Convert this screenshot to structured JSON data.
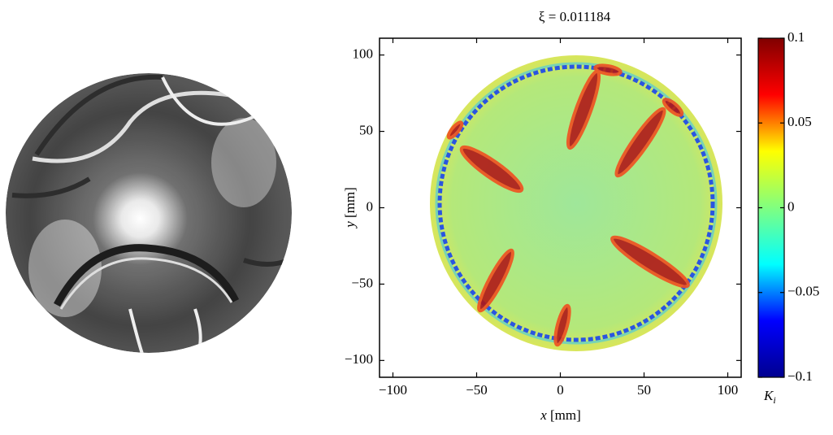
{
  "chart_data": {
    "type": "heatmap",
    "title": "ξ = 0.011184",
    "xlabel": {
      "symbol": "x",
      "unit": "[mm]"
    },
    "ylabel": {
      "symbol": "y",
      "unit": "[mm]"
    },
    "xlim": [
      -108,
      108
    ],
    "ylim": [
      -111,
      111
    ],
    "xticks": [
      {
        "value": -100,
        "label": "−100"
      },
      {
        "value": -50,
        "label": "−50"
      },
      0,
      50,
      100
    ],
    "yticks": [
      {
        "value": -100,
        "label": "−100"
      },
      {
        "value": -50,
        "label": "−50"
      },
      0,
      50,
      100
    ],
    "colormap": "jet",
    "clim": [
      -0.1,
      0.1
    ],
    "cticks": [
      {
        "value": -0.1,
        "label": "−0.1"
      },
      {
        "value": -0.05,
        "label": "−0.05"
      },
      0,
      0.05,
      0.1
    ],
    "colorbar_label": {
      "symbol": "K",
      "subscript": "i"
    }
  }
}
